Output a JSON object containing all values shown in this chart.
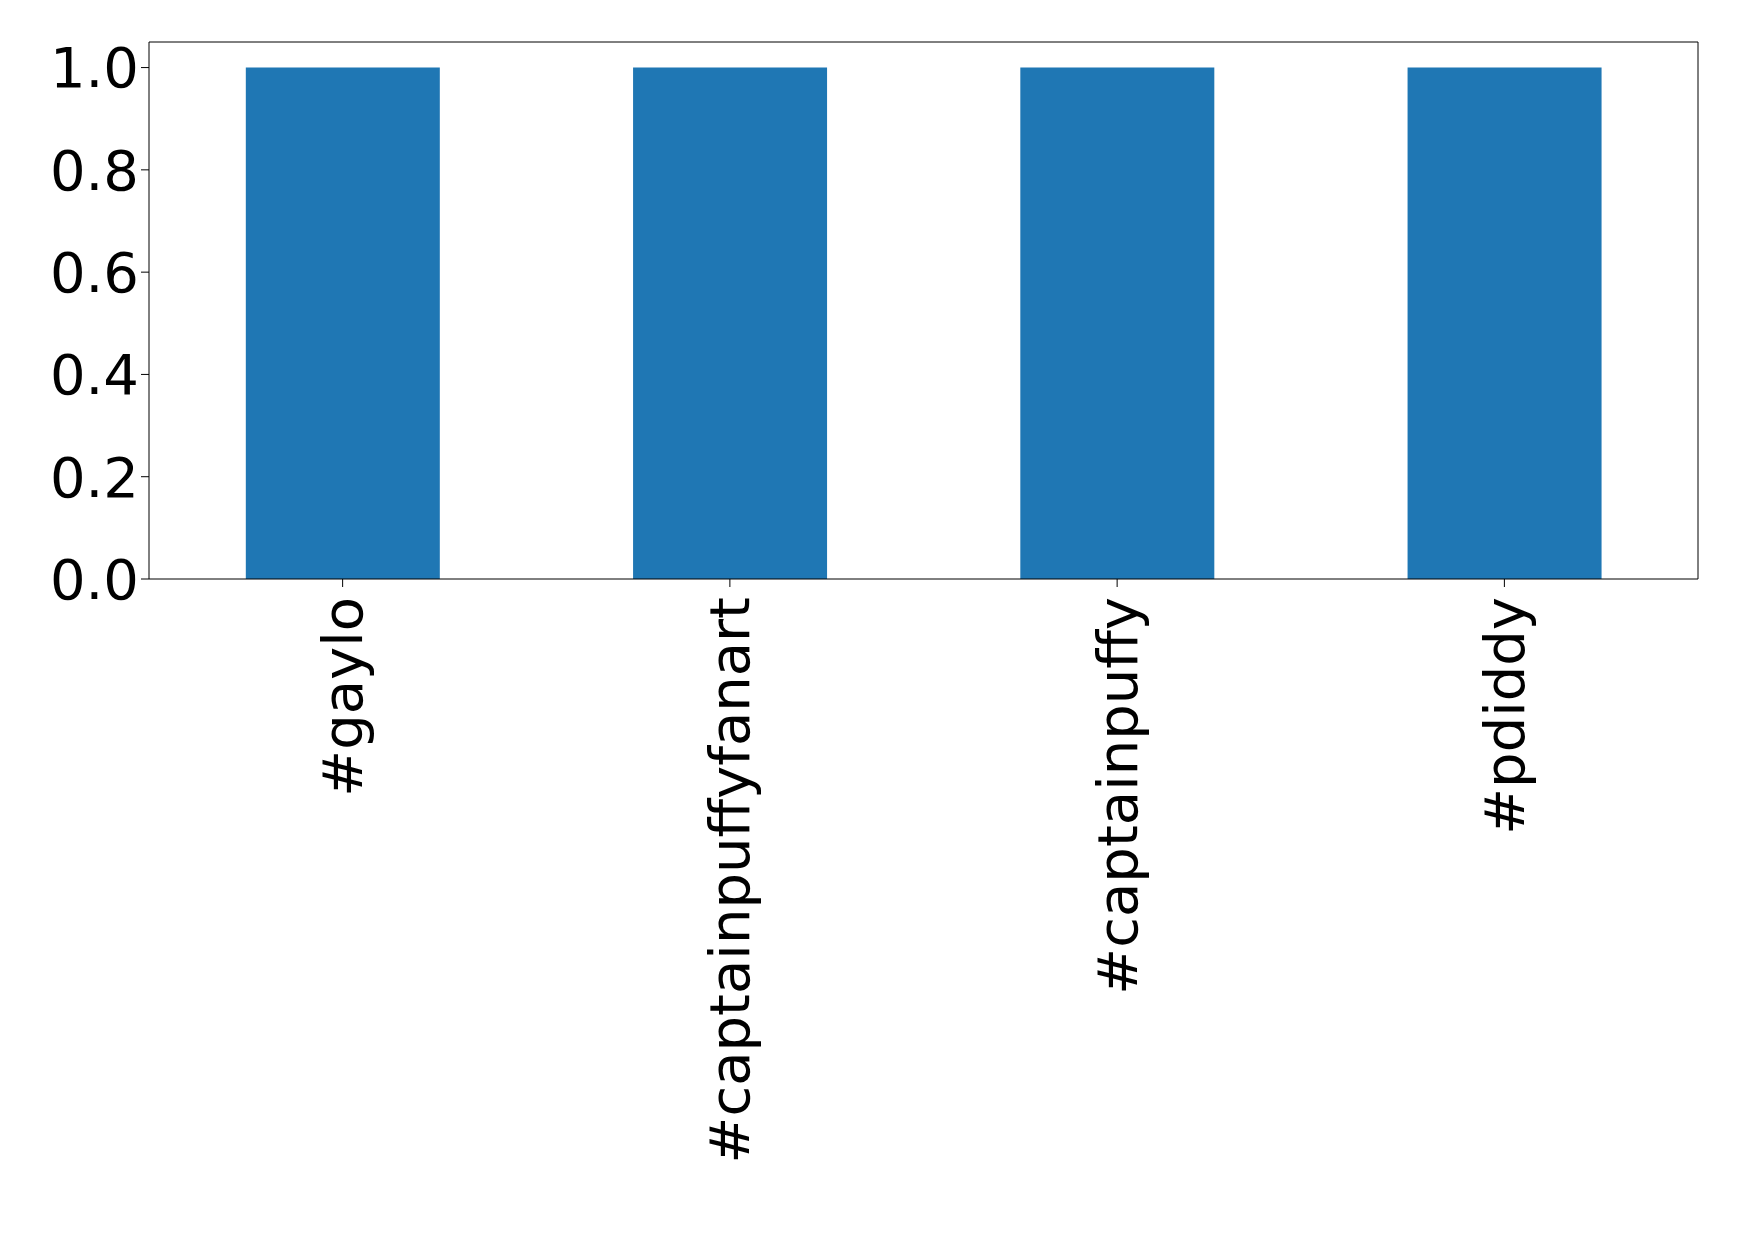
{
  "chart_data": {
    "type": "bar",
    "categories": [
      "#gaylo",
      "#captainpuffyfanart",
      "#captainpuffy",
      "#pdiddy"
    ],
    "values": [
      1,
      1,
      1,
      1
    ],
    "color": "#1f77b4",
    "ylim": [
      0,
      1.05
    ],
    "yticks": [
      {
        "value": 0,
        "label": "0.0"
      },
      {
        "value": 0.2,
        "label": "0.2"
      },
      {
        "value": 0.4,
        "label": "0.4"
      },
      {
        "value": 0.6,
        "label": "0.6"
      },
      {
        "value": 0.8,
        "label": "0.8"
      },
      {
        "value": 1,
        "label": "1.0"
      }
    ],
    "grid": false,
    "legend": false
  }
}
